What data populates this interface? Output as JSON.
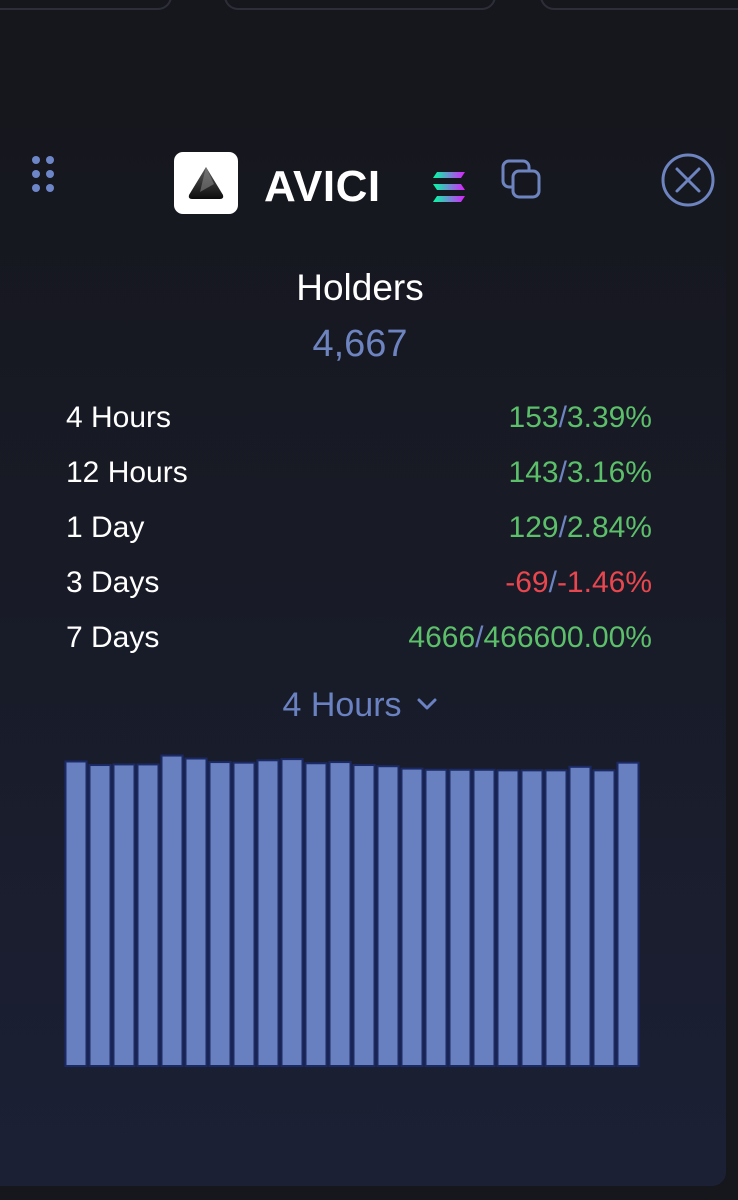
{
  "token": {
    "name": "AVICI",
    "chain_icon": "solana-icon",
    "copy_icon": "copy-icon",
    "close_icon": "close-icon",
    "drag_icon": "drag-handle-icon"
  },
  "holders": {
    "title": "Holders",
    "count": "4,667"
  },
  "stats": [
    {
      "label": "4 Hours",
      "change": "153",
      "percent": "3.39%",
      "trend": "up"
    },
    {
      "label": "12 Hours",
      "change": "143",
      "percent": "3.16%",
      "trend": "up"
    },
    {
      "label": "1 Day",
      "change": "129",
      "percent": "2.84%",
      "trend": "up"
    },
    {
      "label": "3 Days",
      "change": "-69",
      "percent": "-1.46%",
      "trend": "down"
    },
    {
      "label": "7 Days",
      "change": "4666",
      "percent": "466600.00%",
      "trend": "up"
    }
  ],
  "period_selector": {
    "selected": "4 Hours"
  },
  "colors": {
    "accent": "#6d84c0",
    "positive": "#5cbf6a",
    "negative": "#e9464e",
    "bar_fill": "#6880c0",
    "bar_stroke": "#1b2a66"
  },
  "chart_data": {
    "type": "bar",
    "values": [
      4614,
      4608,
      4609,
      4609,
      4624,
      4619,
      4613,
      4612,
      4616,
      4618,
      4611,
      4613,
      4608,
      4606,
      4602,
      4600,
      4600,
      4600,
      4599,
      4599,
      4599,
      4605,
      4599,
      4612
    ],
    "ylim": [
      4100,
      4630
    ]
  }
}
